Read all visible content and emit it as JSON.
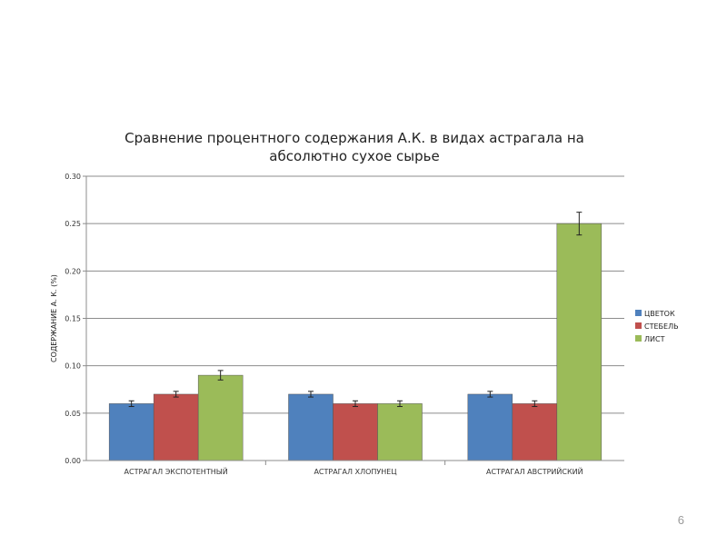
{
  "slide": {
    "page_number": "6"
  },
  "chart_data": {
    "type": "bar",
    "title_lines": [
      "Сравнение процентного содержания А.К. в видах астрагала  на",
      "абсолютно сухое сырье"
    ],
    "xlabel": "",
    "ylabel": "СОДЕРЖАНИЕ А. К. (%)",
    "ylim": [
      0,
      0.3
    ],
    "yticks": [
      "0.00",
      "0.05",
      "0.10",
      "0.15",
      "0.20",
      "0.25",
      "0.30"
    ],
    "grid": true,
    "legend_position": "right",
    "categories": [
      "АСТРАГАЛ ЭКСПОТЕНТНЫЙ",
      "АСТРАГАЛ ХЛОПУНЕЦ",
      "АСТРАГАЛ АВСТРИЙСКИЙ"
    ],
    "series": [
      {
        "name": "ЦВЕТОК",
        "color": "#4f81bd",
        "values": [
          0.06,
          0.07,
          0.07
        ],
        "errors": [
          0.003,
          0.003,
          0.003
        ]
      },
      {
        "name": "СТЕБЕЛЬ",
        "color": "#c0504d",
        "values": [
          0.07,
          0.06,
          0.06
        ],
        "errors": [
          0.003,
          0.003,
          0.003
        ]
      },
      {
        "name": "ЛИСТ",
        "color": "#9bbb59",
        "values": [
          0.09,
          0.06,
          0.25
        ],
        "errors": [
          0.005,
          0.003,
          0.012
        ]
      }
    ]
  }
}
